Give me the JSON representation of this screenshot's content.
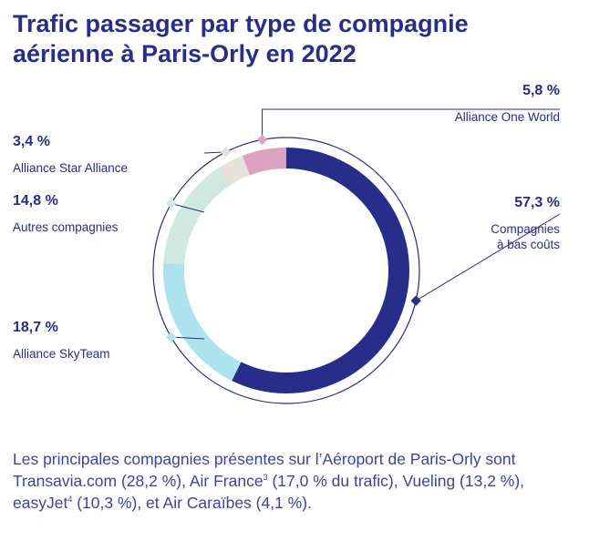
{
  "title": {
    "line1": "Trafic passager par type de compagnie",
    "line2": "aérienne à Paris-Orly en 2022"
  },
  "chart_data": {
    "type": "pie",
    "title": "Trafic passager par type de compagnie aérienne à Paris-Orly en 2022",
    "slices": [
      {
        "label": "Compagnies à bas coûts",
        "label_lines": [
          "Compagnies",
          "à bas coûts"
        ],
        "value": 57.3,
        "value_label": "57,3 %",
        "color": "#262e89"
      },
      {
        "label": "Alliance SkyTeam",
        "label_lines": [
          "Alliance SkyTeam"
        ],
        "value": 18.7,
        "value_label": "18,7 %",
        "color": "#ade2ef"
      },
      {
        "label": "Autres compagnies",
        "label_lines": [
          "Autres compagnies"
        ],
        "value": 14.8,
        "value_label": "14,8 %",
        "color": "#cfe8e0"
      },
      {
        "label": "Alliance Star Alliance",
        "label_lines": [
          "Alliance Star Alliance"
        ],
        "value": 3.4,
        "value_label": "3,4 %",
        "color": "#e8e1d9"
      },
      {
        "label": "Alliance One World",
        "label_lines": [
          "Alliance One World"
        ],
        "value": 5.8,
        "value_label": "5,8 %",
        "color": "#dfa1c1"
      }
    ]
  },
  "note": {
    "part1": "Les principales compagnies présentes sur l’Aéroport de Paris-Orly sont Transavia.com (28,2 %), Air France",
    "sup1": "3",
    "part2": " (17,0 % du trafic), Vueling (13,2 %), easyJet",
    "sup2": "4",
    "part3": " (10,3 %), et Air Caraïbes (4,1 %)."
  },
  "colors": {
    "text": "#262e89",
    "note_text": "#3a44a0",
    "outline": "#262e89"
  }
}
